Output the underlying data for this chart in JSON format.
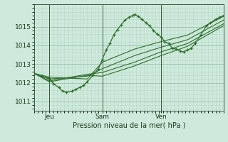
{
  "bg_color": "#ceeadc",
  "grid_major_color": "#9abfaa",
  "grid_minor_color": "#b8d8c4",
  "line_color": "#2d6e2d",
  "ylabel_ticks": [
    1011,
    1012,
    1013,
    1014,
    1015
  ],
  "x_tick_labels": [
    "Jeu",
    "Sam",
    "Ven"
  ],
  "x_tick_positions": [
    0.08,
    0.36,
    0.67
  ],
  "xlabel": "Pression niveau de la mer( hPa )",
  "xlim": [
    0.0,
    1.0
  ],
  "ylim": [
    1010.5,
    1016.2
  ],
  "series": [
    {
      "points": [
        [
          0.0,
          1012.5
        ],
        [
          0.04,
          1012.35
        ],
        [
          0.07,
          1012.25
        ],
        [
          0.08,
          1012.25
        ],
        [
          0.1,
          1011.95
        ],
        [
          0.13,
          1011.75
        ],
        [
          0.15,
          1011.55
        ],
        [
          0.17,
          1011.5
        ],
        [
          0.2,
          1011.55
        ],
        [
          0.22,
          1011.65
        ],
        [
          0.24,
          1011.75
        ],
        [
          0.26,
          1011.85
        ],
        [
          0.28,
          1012.05
        ],
        [
          0.31,
          1012.4
        ],
        [
          0.34,
          1012.75
        ],
        [
          0.36,
          1013.25
        ],
        [
          0.38,
          1013.75
        ],
        [
          0.4,
          1014.1
        ],
        [
          0.42,
          1014.55
        ],
        [
          0.44,
          1014.85
        ],
        [
          0.46,
          1015.1
        ],
        [
          0.48,
          1015.35
        ],
        [
          0.5,
          1015.5
        ],
        [
          0.52,
          1015.6
        ],
        [
          0.53,
          1015.65
        ],
        [
          0.55,
          1015.55
        ],
        [
          0.57,
          1015.4
        ],
        [
          0.59,
          1015.2
        ],
        [
          0.61,
          1015.05
        ],
        [
          0.63,
          1014.8
        ],
        [
          0.65,
          1014.6
        ],
        [
          0.67,
          1014.45
        ],
        [
          0.69,
          1014.2
        ],
        [
          0.71,
          1014.1
        ],
        [
          0.73,
          1013.85
        ],
        [
          0.75,
          1013.8
        ],
        [
          0.77,
          1013.7
        ],
        [
          0.79,
          1013.65
        ],
        [
          0.81,
          1013.75
        ],
        [
          0.83,
          1013.85
        ],
        [
          0.85,
          1014.1
        ],
        [
          0.88,
          1014.55
        ],
        [
          0.91,
          1015.05
        ],
        [
          0.93,
          1015.2
        ],
        [
          0.96,
          1015.4
        ],
        [
          0.98,
          1015.5
        ],
        [
          1.0,
          1015.6
        ]
      ],
      "marker": true
    },
    {
      "points": [
        [
          0.0,
          1012.5
        ],
        [
          0.08,
          1012.3
        ],
        [
          0.28,
          1012.2
        ],
        [
          0.36,
          1013.1
        ],
        [
          0.53,
          1013.8
        ],
        [
          0.67,
          1014.2
        ],
        [
          0.81,
          1014.55
        ],
        [
          1.0,
          1015.55
        ]
      ],
      "marker": false
    },
    {
      "points": [
        [
          0.0,
          1012.5
        ],
        [
          0.08,
          1012.2
        ],
        [
          0.28,
          1012.35
        ],
        [
          0.36,
          1012.75
        ],
        [
          0.53,
          1013.45
        ],
        [
          0.67,
          1013.9
        ],
        [
          0.81,
          1014.3
        ],
        [
          1.0,
          1015.35
        ]
      ],
      "marker": false
    },
    {
      "points": [
        [
          0.0,
          1012.5
        ],
        [
          0.08,
          1012.1
        ],
        [
          0.28,
          1012.45
        ],
        [
          0.36,
          1012.55
        ],
        [
          0.53,
          1013.1
        ],
        [
          0.67,
          1013.65
        ],
        [
          0.81,
          1014.1
        ],
        [
          1.0,
          1015.15
        ]
      ],
      "marker": false
    },
    {
      "points": [
        [
          0.0,
          1012.5
        ],
        [
          0.08,
          1012.05
        ],
        [
          0.28,
          1012.4
        ],
        [
          0.36,
          1012.35
        ],
        [
          0.53,
          1012.9
        ],
        [
          0.67,
          1013.45
        ],
        [
          0.81,
          1013.95
        ],
        [
          1.0,
          1015.05
        ]
      ],
      "marker": false
    }
  ]
}
